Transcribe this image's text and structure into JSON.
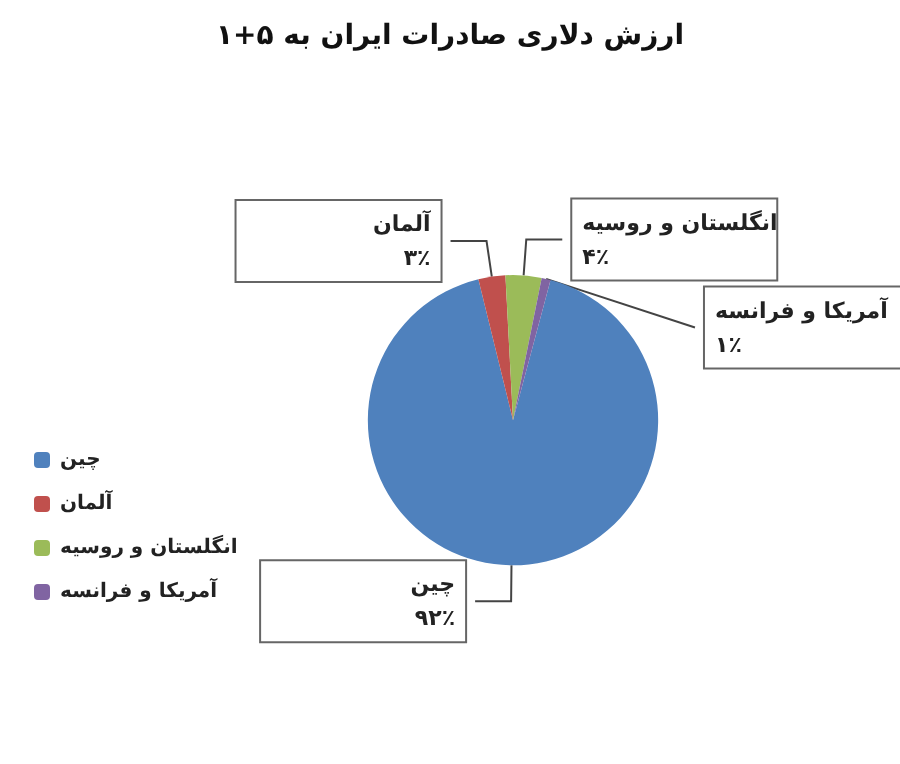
{
  "chart_data": {
    "type": "pie",
    "title": "ارزش دلاری صادرات ایران به ۵+۱",
    "categories": [
      "چین",
      "آلمان",
      "انگلستان و روسیه",
      "آمریکا و فرانسه"
    ],
    "values": [
      92,
      3,
      4,
      1
    ],
    "colors": [
      "#4f81bd",
      "#c0504d",
      "#9bbb59",
      "#8064a2"
    ],
    "value_labels": [
      "۹۲٪",
      "۳٪",
      "۴٪",
      "۱٪"
    ],
    "legend": "left"
  }
}
